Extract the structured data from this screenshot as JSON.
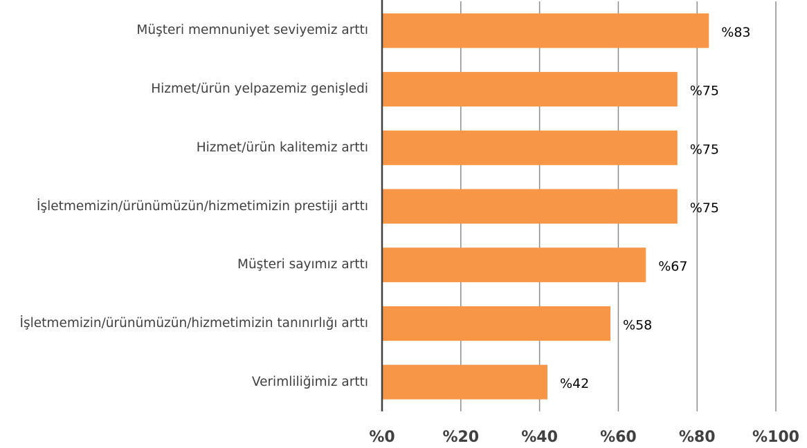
{
  "chart_data": {
    "type": "bar",
    "orientation": "horizontal",
    "categories": [
      "Müşteri memnuniyet seviyemiz arttı",
      "Hizmet/ürün yelpazemiz genişledi",
      "Hizmet/ürün kalitemiz arttı",
      "İşletmemizin/ürünümüzün/hizmetimizin prestiji arttı",
      "Müşteri sayımız arttı",
      "İşletmemizin/ürünümüzün/hizmetimizin tanınırlığı arttı",
      "Verimliliğimiz arttı"
    ],
    "values": [
      83,
      75,
      75,
      75,
      67,
      58,
      42
    ],
    "value_labels": [
      "%83",
      "%75",
      "%75",
      "%75",
      "%67",
      "%58",
      "%42"
    ],
    "color": "#f79646",
    "xlim": [
      0,
      100
    ],
    "xticks": [
      {
        "value": 0,
        "label": "%0"
      },
      {
        "value": 20,
        "label": "%20"
      },
      {
        "value": 40,
        "label": "%40"
      },
      {
        "value": 60,
        "label": "%60"
      },
      {
        "value": 80,
        "label": "%80"
      },
      {
        "value": 100,
        "label": "%100"
      }
    ],
    "grid": true
  }
}
